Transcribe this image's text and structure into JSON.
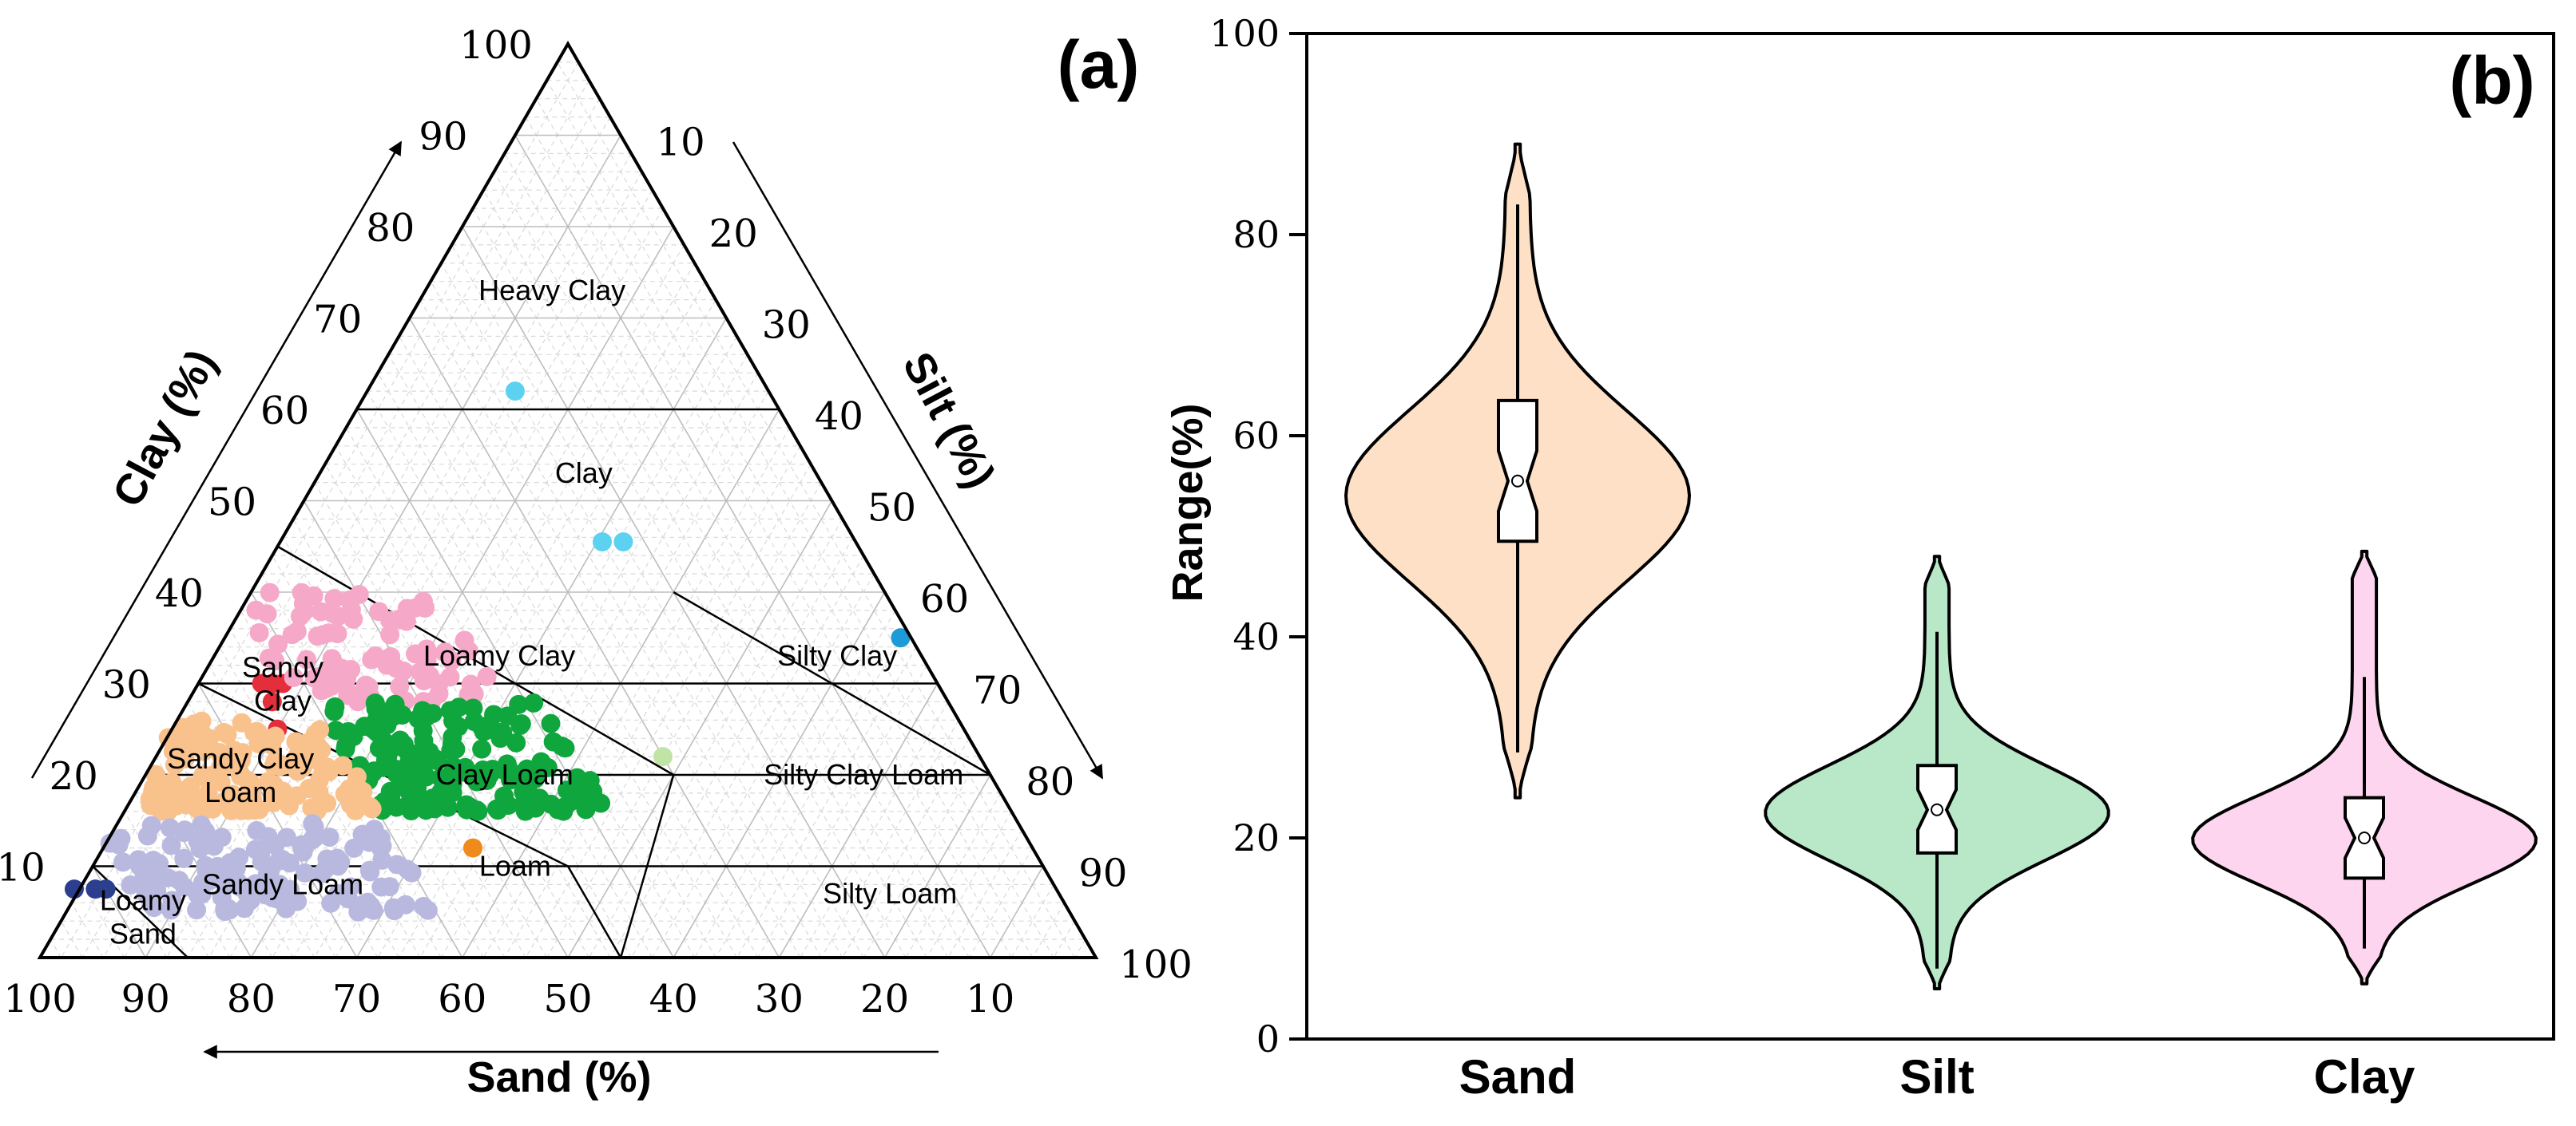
{
  "colors": {
    "loamy_sand": "#2c3f8f",
    "sandy_loam": "#b9b9e0",
    "sandy_clay_loam": "#f9c28d",
    "sandy_clay": "#e52e3c",
    "loamy_clay": "#f6a8c8",
    "clay_loam": "#0fa63d",
    "clay": "#5dd2f0",
    "silty_clay": "#1e9ad6",
    "loam": "#f08a1c",
    "silty_clay_loam": "#bfe4a6",
    "violin_sand": "#fde0c5",
    "violin_silt": "#b8e8c8",
    "violin_clay": "#fdd5ee"
  },
  "chart_data": [
    {
      "type": "scatter",
      "subtype": "ternary",
      "panel_label": "(a)",
      "axis_titles": {
        "clay": "Clay (%)",
        "silt": "Silt (%)",
        "sand": "Sand (%)"
      },
      "ticks": {
        "clay": [
          "10",
          "20",
          "30",
          "40",
          "50",
          "60",
          "70",
          "80",
          "90",
          "100"
        ],
        "silt": [
          "10",
          "20",
          "30",
          "40",
          "50",
          "60",
          "70",
          "80",
          "90",
          "100"
        ],
        "sand": [
          "100",
          "90",
          "80",
          "70",
          "60",
          "50",
          "40",
          "30",
          "20",
          "10"
        ]
      },
      "region_labels": [
        {
          "lines": [
            "Heavy Clay"
          ],
          "sand": 15,
          "clay": 73
        },
        {
          "lines": [
            "Clay"
          ],
          "sand": 22,
          "clay": 53
        },
        {
          "lines": [
            "Loamy Clay"
          ],
          "sand": 40,
          "clay": 33
        },
        {
          "lines": [
            "Sandy",
            "Clay"
          ],
          "sand": 62,
          "clay": 30
        },
        {
          "lines": [
            "Silty Clay"
          ],
          "sand": 8,
          "clay": 33
        },
        {
          "lines": [
            "Sandy Clay",
            "Loam"
          ],
          "sand": 71,
          "clay": 20
        },
        {
          "lines": [
            "Clay Loam"
          ],
          "sand": 46,
          "clay": 20
        },
        {
          "lines": [
            "Silty Clay Loam"
          ],
          "sand": 12,
          "clay": 20
        },
        {
          "lines": [
            "Sandy Loam"
          ],
          "sand": 73,
          "clay": 8
        },
        {
          "lines": [
            "Loam"
          ],
          "sand": 50,
          "clay": 10
        },
        {
          "lines": [
            "Silty Loam"
          ],
          "sand": 16,
          "clay": 7
        },
        {
          "lines": [
            "Loamy",
            "Sand"
          ],
          "sand": 88,
          "clay": 4.5
        }
      ],
      "groups": [
        {
          "class": "Heavy Clay",
          "points": []
        },
        {
          "class": "Clay",
          "color_key": "clay",
          "points": [
            [
              24,
              62
            ],
            [
              24,
              45.5
            ],
            [
              22,
              45.5
            ]
          ]
        },
        {
          "class": "Silty Clay",
          "color_key": "silty_clay",
          "points": [
            [
              1,
              35
            ]
          ]
        },
        {
          "class": "Silty Clay Loam",
          "color_key": "silty_clay_loam",
          "points": [
            [
              30,
              22
            ]
          ]
        },
        {
          "class": "Loam",
          "color_key": "loam",
          "points": [
            [
              53,
              12
            ]
          ]
        },
        {
          "class": "Loamy Sand",
          "color_key": "loamy_sand",
          "points": [
            [
              90,
              7.5
            ],
            [
              91,
              7.5
            ],
            [
              93,
              7.5
            ]
          ]
        },
        {
          "class": "Sandy Clay",
          "color_key": "sandy_clay",
          "points": [
            [
              62,
              30
            ],
            [
              63,
              30
            ],
            [
              64,
              30
            ],
            [
              64,
              28
            ],
            [
              65,
              25
            ]
          ]
        },
        {
          "class": "Loamy Clay",
          "color_key": "loamy_clay",
          "cluster": {
            "sand": [
              42,
              62
            ],
            "clay": [
              28,
              40
            ],
            "n": 90
          }
        },
        {
          "class": "Clay Loam",
          "color_key": "clay_loam",
          "cluster": {
            "sand": [
              38,
              60
            ],
            "clay": [
              16,
              28
            ],
            "n": 160
          }
        },
        {
          "class": "Sandy Clay Loam",
          "color_key": "sandy_clay_loam",
          "cluster": {
            "sand": [
              60,
              82
            ],
            "clay": [
              16,
              26
            ],
            "n": 160
          }
        },
        {
          "class": "Sandy Loam",
          "color_key": "sandy_loam",
          "cluster": {
            "sand": [
              60,
              88
            ],
            "clay": [
              5,
              15
            ],
            "n": 140
          }
        }
      ]
    },
    {
      "type": "violin",
      "panel_label": "(b)",
      "ylabel": "Range(%)",
      "ylim": [
        0,
        100
      ],
      "yticks": [
        0,
        20,
        40,
        60,
        80,
        100
      ],
      "categories": [
        "Sand",
        "Silt",
        "Clay"
      ],
      "series": [
        {
          "name": "Sand",
          "color_key": "violin_sand",
          "min": 24,
          "max": 89,
          "q1": 49.5,
          "median": 55.5,
          "q3": 63.5,
          "whisker_low": 28.5,
          "whisker_high": 83,
          "notch": [
            52.5,
            58.5
          ],
          "mode": 54,
          "sd": 8.5
        },
        {
          "name": "Silt",
          "color_key": "violin_silt",
          "min": 5,
          "max": 48,
          "q1": 18.5,
          "median": 22.8,
          "q3": 27.2,
          "whisker_low": 7,
          "whisker_high": 40.5,
          "notch": [
            20.8,
            24.8
          ],
          "mode": 22.5,
          "sd": 4.7
        },
        {
          "name": "Clay",
          "color_key": "violin_clay",
          "min": 5.5,
          "max": 48.5,
          "q1": 16,
          "median": 20,
          "q3": 24,
          "whisker_low": 9,
          "whisker_high": 36,
          "notch": [
            18,
            22
          ],
          "mode": 19.8,
          "sd": 4.3
        }
      ]
    }
  ]
}
